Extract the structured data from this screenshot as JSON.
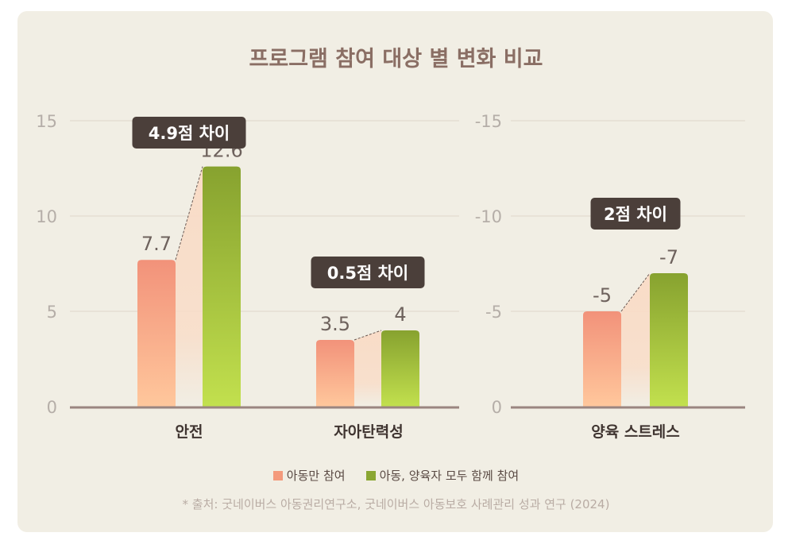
{
  "chart_data": [
    {
      "type": "bar",
      "title": "프로그램 참여 대상 별 변화 비교",
      "categories": [
        "안전",
        "자아탄력성"
      ],
      "series": [
        {
          "name": "아동만 참여",
          "values": [
            7.7,
            3.5
          ]
        },
        {
          "name": "아동, 양육자 모두 함께 참여",
          "values": [
            12.6,
            4
          ]
        }
      ],
      "annotations": [
        "4.9점 차이",
        "0.5점 차이"
      ],
      "yticks": [
        "0",
        "5",
        "10",
        "15"
      ],
      "ylim": [
        0,
        15
      ],
      "grid": true
    },
    {
      "type": "bar",
      "categories": [
        "양육 스트레스"
      ],
      "series": [
        {
          "name": "아동만 참여",
          "values": [
            -5
          ]
        },
        {
          "name": "아동, 양육자 모두 함께 참여",
          "values": [
            -7
          ]
        }
      ],
      "annotations": [
        "2점 차이"
      ],
      "yticks": [
        "0",
        "-5",
        "-10",
        "-15"
      ],
      "ylim": [
        0,
        -15
      ],
      "y_inverted": true,
      "grid": true
    }
  ],
  "title": "프로그램 참여 대상 별 변화 비교",
  "legend": [
    {
      "label": "아동만 참여",
      "color": "#f49a7c"
    },
    {
      "label": "아동, 양육자 모두 함께 참여",
      "color": "#8aa632"
    }
  ],
  "source": "* 출처: 굿네이버스 아동권리연구소, 굿네이버스 아동보호 사례관리 성과 연구 (2024)",
  "colors": {
    "background": "#f1eee4",
    "title": "#8a6e64",
    "badge": "#4b3f3a",
    "axis": "#9a8580"
  }
}
